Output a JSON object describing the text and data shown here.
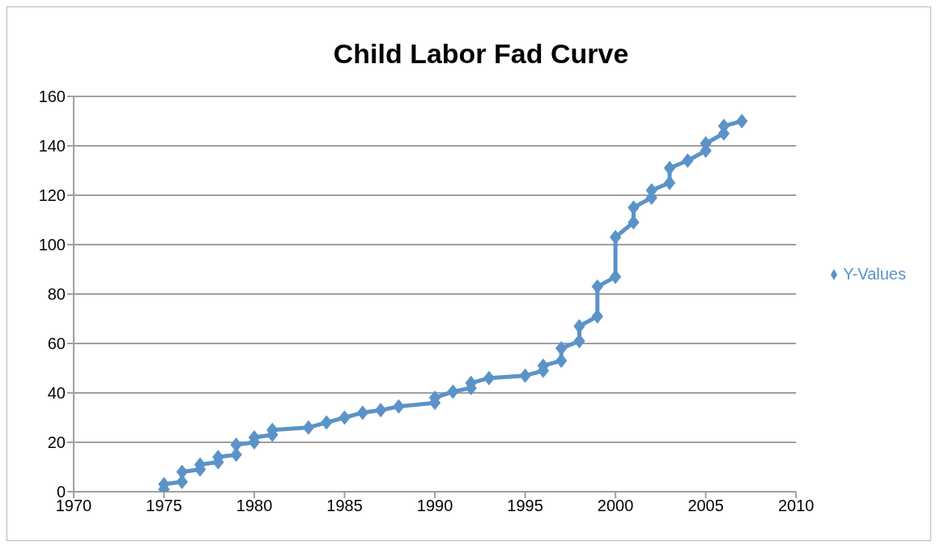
{
  "chart_data": {
    "type": "line",
    "title": "Child Labor Fad Curve",
    "x": [
      1975,
      1975,
      1976,
      1976,
      1977,
      1977,
      1978,
      1978,
      1979,
      1979,
      1980,
      1980,
      1981,
      1981,
      1983,
      1984,
      1985,
      1986,
      1987,
      1988,
      1990,
      1990,
      1991,
      1992,
      1992,
      1993,
      1995,
      1996,
      1996,
      1997,
      1997,
      1998,
      1998,
      1999,
      1999,
      2000,
      2000,
      2001,
      2001,
      2002,
      2002,
      2003,
      2003,
      2004,
      2005,
      2005,
      2006,
      2006,
      2007
    ],
    "series": [
      {
        "name": "Y-Values",
        "color": "#5b93c8",
        "values": [
          1,
          3,
          4,
          8,
          9,
          11,
          12,
          14,
          15,
          19,
          20,
          22,
          23,
          25,
          26,
          28,
          30,
          32,
          33,
          34.5,
          36,
          38,
          40.5,
          42,
          44,
          46,
          47,
          49,
          51,
          53,
          58,
          61,
          67,
          71,
          83,
          87,
          103,
          109,
          115,
          119,
          122,
          125,
          131,
          134,
          138,
          141,
          145,
          148,
          150
        ]
      }
    ],
    "xlim": [
      1970,
      2010
    ],
    "xticks": [
      1970,
      1975,
      1980,
      1985,
      1990,
      1995,
      2000,
      2005,
      2010
    ],
    "ylim": [
      0,
      160
    ],
    "yticks": [
      0,
      20,
      40,
      60,
      80,
      100,
      120,
      140,
      160
    ],
    "grid": "y",
    "legend": "right",
    "marker": "diamond",
    "line_style": "solid"
  }
}
